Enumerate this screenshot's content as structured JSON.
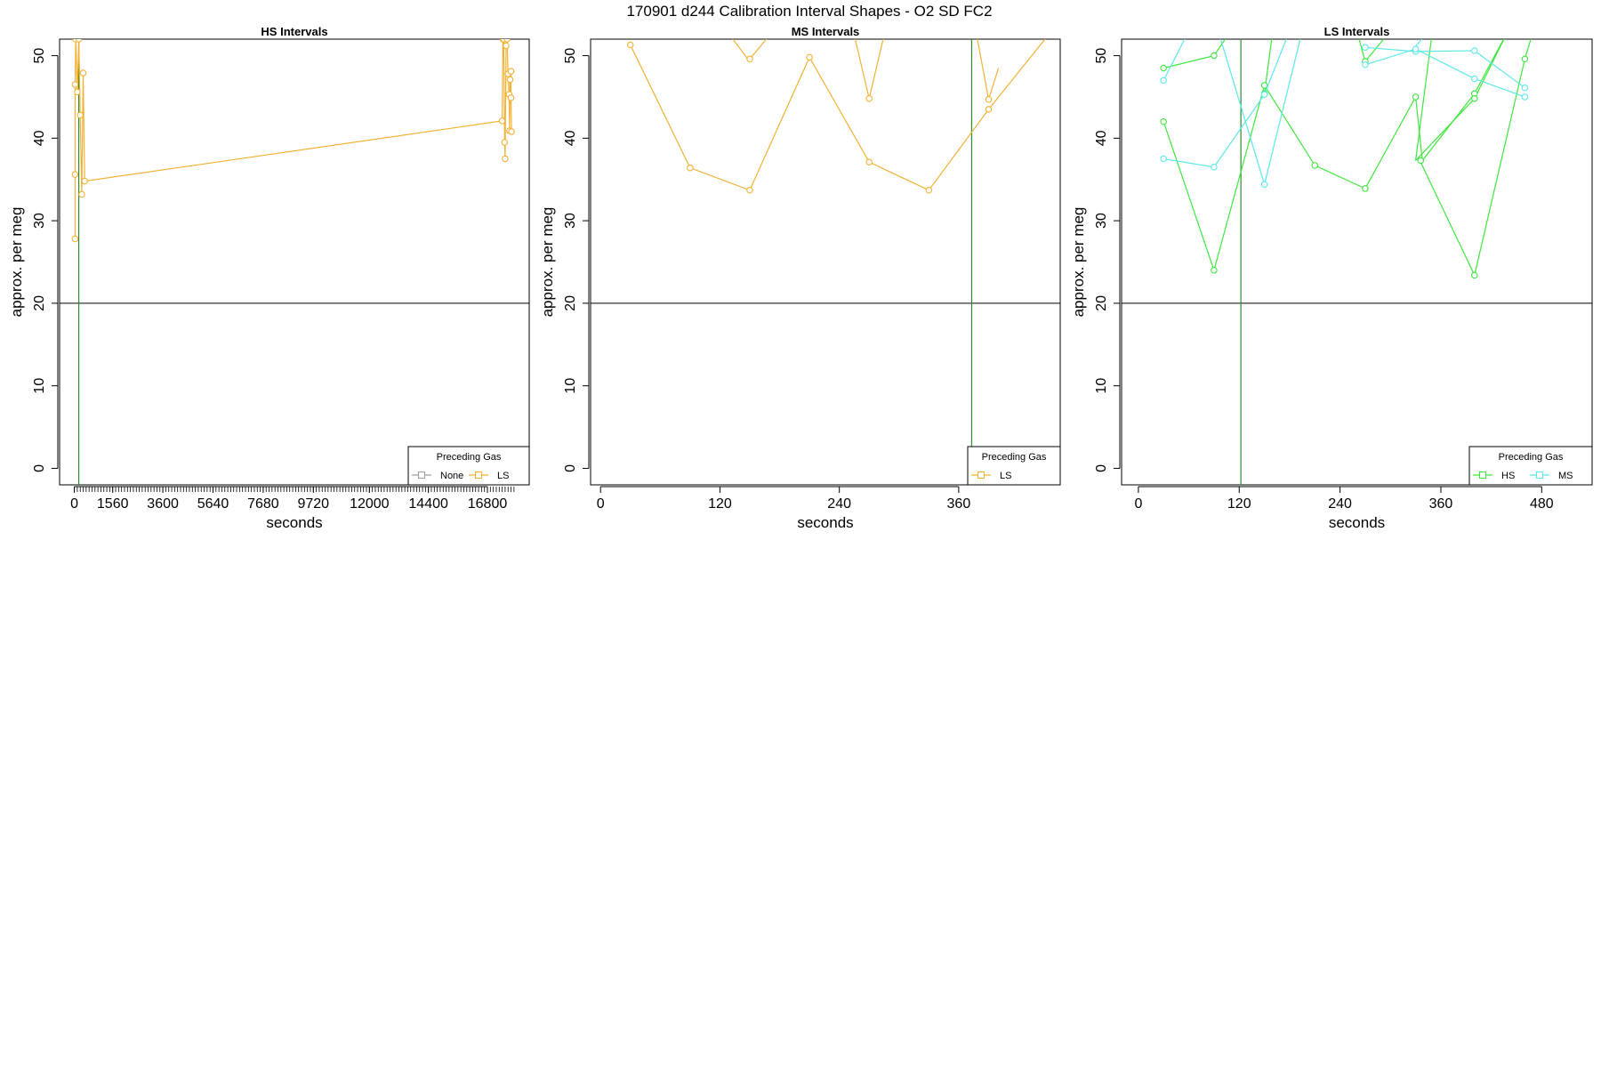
{
  "figure": {
    "title": "170901   d244   Calibration Interval Shapes - O2 SD FC2"
  },
  "colors": {
    "None": "#a0a0a0",
    "LS": "#f2b134",
    "HS": "#3ee63e",
    "MS": "#5ce8e8",
    "axis": "#000000",
    "hline": "#000000",
    "vline": "#2e8b2e"
  },
  "chart_data": [
    {
      "type": "line",
      "title": "HS Intervals",
      "xlabel": "seconds",
      "ylabel": "approx. per meg",
      "xlim": [
        -600,
        18500
      ],
      "ylim": [
        -2,
        52
      ],
      "xticks": [
        0,
        1560,
        3600,
        5640,
        7680,
        9720,
        12000,
        14400,
        16800
      ],
      "yticks": [
        0,
        10,
        20,
        30,
        40,
        50
      ],
      "hline": 20,
      "vline": 180,
      "minor_tick_step": 120,
      "minor_tick_range": [
        0,
        17880
      ],
      "legend": {
        "title": "Preceding Gas",
        "entries": [
          "None",
          "LS"
        ],
        "position": "bottom-right"
      },
      "series": [
        {
          "name": "LS",
          "color_key": "LS",
          "points": [
            [
              30,
              27.8
            ],
            [
              30,
              35.6
            ],
            [
              30,
              46.5
            ],
            [
              60,
              52
            ],
            [
              120,
              45.6
            ],
            [
              180,
              52
            ],
            [
              240,
              42.8
            ],
            [
              300,
              33.2
            ],
            [
              360,
              47.9
            ],
            [
              420,
              34.8
            ],
            [
              17400,
              42.1
            ],
            [
              17430,
              52
            ],
            [
              17460,
              52
            ],
            [
              17500,
              39.5
            ],
            [
              17520,
              37.5
            ],
            [
              17560,
              51.2
            ],
            [
              17600,
              52
            ],
            [
              17640,
              47.8
            ],
            [
              17680,
              45.3
            ],
            [
              17700,
              40.9
            ],
            [
              17720,
              47.1
            ],
            [
              17760,
              48.1
            ],
            [
              17760,
              44.9
            ],
            [
              17780,
              40.8
            ]
          ]
        }
      ]
    },
    {
      "type": "line",
      "title": "MS Intervals",
      "xlabel": "seconds",
      "ylabel": "approx. per meg",
      "xlim": [
        -10,
        462
      ],
      "ylim": [
        -2,
        52
      ],
      "xticks": [
        0,
        120,
        240,
        360
      ],
      "yticks": [
        0,
        10,
        20,
        30,
        40,
        50
      ],
      "hline": 20,
      "vline": 373,
      "legend": {
        "title": "Preceding Gas",
        "entries": [
          "LS"
        ],
        "position": "bottom-right"
      },
      "series": [
        {
          "name": "LS",
          "color_key": "LS",
          "segments": [
            [
              [
                30,
                51.3
              ],
              [
                90,
                36.4
              ],
              [
                150,
                33.7
              ],
              [
                210,
                49.8
              ],
              [
                270,
                37.1
              ],
              [
                330,
                33.7
              ],
              [
                390,
                43.5
              ],
              [
                450,
                52.5
              ]
            ],
            [
              [
                150,
                49.6
              ],
              [
                170,
                52.5
              ]
            ],
            [
              [
                255,
                52.5
              ],
              [
                270,
                44.8
              ],
              [
                285,
                52.5
              ]
            ],
            [
              [
                378,
                52.5
              ],
              [
                390,
                44.7
              ],
              [
                400,
                48.5
              ]
            ],
            [
              [
                130,
                52.5
              ],
              [
                148,
                49.6
              ]
            ]
          ],
          "markers": [
            [
              30,
              51.3
            ],
            [
              90,
              36.4
            ],
            [
              150,
              33.7
            ],
            [
              150,
              49.6
            ],
            [
              210,
              49.8
            ],
            [
              270,
              37.1
            ],
            [
              270,
              44.8
            ],
            [
              330,
              33.7
            ],
            [
              390,
              43.5
            ],
            [
              390,
              44.7
            ]
          ]
        }
      ]
    },
    {
      "type": "line",
      "title": "LS Intervals",
      "xlabel": "seconds",
      "ylabel": "approx. per meg",
      "xlim": [
        -20,
        540
      ],
      "ylim": [
        -2,
        52
      ],
      "xticks": [
        0,
        120,
        240,
        360,
        480
      ],
      "yticks": [
        0,
        10,
        20,
        30,
        40,
        50
      ],
      "hline": 20,
      "vline": 122,
      "legend": {
        "title": "Preceding Gas",
        "entries": [
          "HS",
          "MS"
        ],
        "position": "bottom-right"
      },
      "series": [
        {
          "name": "HS",
          "color_key": "HS",
          "segments": [
            [
              [
                30,
                48.5
              ],
              [
                90,
                50.0
              ],
              [
                110,
                53
              ]
            ],
            [
              [
                30,
                42.0
              ],
              [
                90,
                24.0
              ],
              [
                150,
                46.4
              ],
              [
                210,
                36.7
              ],
              [
                270,
                33.9
              ],
              [
                330,
                45.0
              ],
              [
                338,
                37.3
              ],
              [
                400,
                45.4
              ],
              [
                440,
                53
              ]
            ],
            [
              [
                150,
                45.4
              ],
              [
                160,
                53
              ]
            ],
            [
              [
                260,
                53
              ],
              [
                270,
                49.3
              ],
              [
                300,
                53
              ]
            ],
            [
              [
                330,
                37.3
              ],
              [
                350,
                53
              ]
            ],
            [
              [
                335,
                37.3
              ],
              [
                400,
                23.4
              ],
              [
                460,
                49.6
              ],
              [
                470,
                53
              ]
            ],
            [
              [
                330,
                37.3
              ],
              [
                400,
                44.8
              ],
              [
                440,
                53
              ]
            ]
          ],
          "markers": [
            [
              30,
              48.5
            ],
            [
              30,
              42.0
            ],
            [
              90,
              50.0
            ],
            [
              90,
              24.0
            ],
            [
              150,
              46.4
            ],
            [
              150,
              45.4
            ],
            [
              210,
              36.7
            ],
            [
              270,
              49.3
            ],
            [
              270,
              33.9
            ],
            [
              330,
              45.0
            ],
            [
              336,
              37.3
            ],
            [
              400,
              23.4
            ],
            [
              400,
              45.4
            ],
            [
              400,
              44.8
            ],
            [
              460,
              49.6
            ]
          ]
        },
        {
          "name": "MS",
          "color_key": "MS",
          "segments": [
            [
              [
                30,
                47.0
              ],
              [
                60,
                53
              ]
            ],
            [
              [
                30,
                37.5
              ],
              [
                90,
                36.5
              ],
              [
                150,
                45.3
              ],
              [
                180,
                53
              ]
            ],
            [
              [
                95,
                53
              ],
              [
                150,
                34.4
              ],
              [
                195,
                53
              ]
            ],
            [
              [
                270,
                51.0
              ],
              [
                330,
                50.5
              ],
              [
                400,
                50.6
              ],
              [
                460,
                46.1
              ]
            ],
            [
              [
                270,
                48.9
              ],
              [
                330,
                50.8
              ],
              [
                400,
                47.2
              ],
              [
                460,
                45.0
              ]
            ],
            [
              [
                330,
                51.1
              ],
              [
                345,
                53
              ]
            ]
          ],
          "markers": [
            [
              30,
              47.0
            ],
            [
              30,
              37.5
            ],
            [
              90,
              36.5
            ],
            [
              150,
              34.4
            ],
            [
              150,
              45.3
            ],
            [
              270,
              51.0
            ],
            [
              270,
              48.9
            ],
            [
              330,
              50.5
            ],
            [
              330,
              50.8
            ],
            [
              400,
              50.6
            ],
            [
              400,
              47.2
            ],
            [
              460,
              46.1
            ],
            [
              460,
              45.0
            ]
          ]
        }
      ]
    }
  ]
}
